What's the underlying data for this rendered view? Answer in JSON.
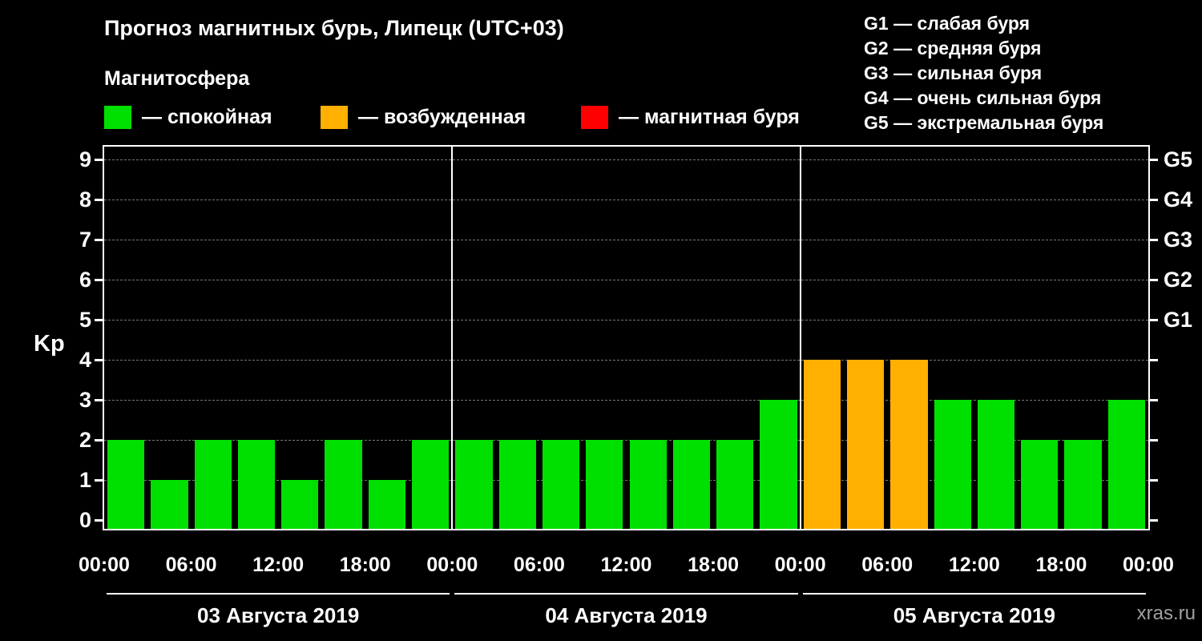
{
  "title": "Прогноз магнитных бурь, Липецк (UTC+03)",
  "subtitle": "Магнитосфера",
  "legend": [
    {
      "label": "— спокойная",
      "color": "#00e000"
    },
    {
      "label": "— возбужденная",
      "color": "#ffb000"
    },
    {
      "label": "— магнитная буря",
      "color": "#ff0000"
    }
  ],
  "storm_scale": [
    "G1 — слабая буря",
    "G2 — средняя буря",
    "G3 — сильная буря",
    "G4 — очень сильная буря",
    "G5 — экстремальная буря"
  ],
  "watermark": "xras.ru",
  "chart_data": {
    "type": "bar",
    "title": "Прогноз магнитных бурь, Липецк (UTC+03)",
    "ylabel": "Kp",
    "ylim": [
      0,
      9
    ],
    "yticks": [
      0,
      1,
      2,
      3,
      4,
      5,
      6,
      7,
      8,
      9
    ],
    "right_axis": [
      {
        "label": "G1",
        "kp": 5
      },
      {
        "label": "G2",
        "kp": 6
      },
      {
        "label": "G3",
        "kp": 7
      },
      {
        "label": "G4",
        "kp": 8
      },
      {
        "label": "G5",
        "kp": 9
      }
    ],
    "time_ticks": [
      "00:00",
      "06:00",
      "12:00",
      "18:00"
    ],
    "closing_time_tick": "00:00",
    "interval_hours": 3,
    "grid": "horizontal-dashed",
    "legend_position": "top-left",
    "colors": {
      "quiet": "#00e000",
      "excited": "#ffb000",
      "storm": "#ff0000"
    },
    "thresholds": {
      "excited_min": 4,
      "storm_min": 5
    },
    "days": [
      {
        "date": "03 Августа 2019",
        "kp": [
          2,
          1,
          2,
          2,
          1,
          2,
          1,
          2
        ]
      },
      {
        "date": "04 Августа 2019",
        "kp": [
          2,
          2,
          2,
          2,
          2,
          2,
          2,
          3
        ]
      },
      {
        "date": "05 Августа 2019",
        "kp": [
          4,
          4,
          4,
          3,
          3,
          2,
          2,
          3
        ]
      }
    ]
  }
}
